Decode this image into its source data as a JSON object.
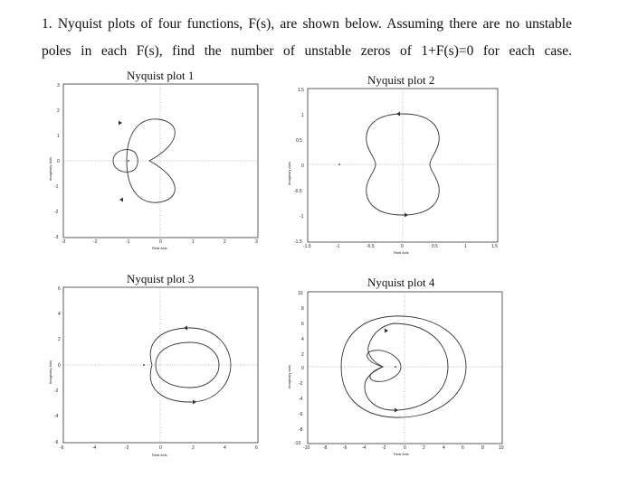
{
  "question": {
    "line1": "1. Nyquist plots of four functions, F(s), are shown below. Assuming there are no unstable",
    "line2": "poles in each F(s), find the number of unstable zeros of 1+F(s)=0 for each case."
  },
  "plots": [
    {
      "title": "Nyquist plot 1",
      "ylabel": "Imaginary Axis",
      "xlabel": "Real Axis",
      "xticks": [
        "-3",
        "-2",
        "-1",
        "0",
        "1",
        "2",
        "3"
      ],
      "yticks": [
        "3",
        "2",
        "1",
        "0",
        "-1",
        "-2",
        "-3"
      ]
    },
    {
      "title": "Nyquist plot 2",
      "ylabel": "Imaginary Axis",
      "xlabel": "Real Axis",
      "xticks": [
        "-1.5",
        "-1",
        "-0.5",
        "0",
        "0.5",
        "1",
        "1.5"
      ],
      "yticks": [
        "1.5",
        "1",
        "0.5",
        "0",
        "-0.5",
        "-1",
        "-1.5"
      ]
    },
    {
      "title": "Nyquist plot 3",
      "ylabel": "Imaginary Axis",
      "xlabel": "Real Axis",
      "xticks": [
        "-6",
        "-4",
        "-2",
        "0",
        "2",
        "4",
        "6"
      ],
      "yticks": [
        "6",
        "4",
        "2",
        "0",
        "-2",
        "-4",
        "-6"
      ]
    },
    {
      "title": "Nyquist plot 4",
      "ylabel": "Imaginary Axis",
      "xlabel": "Real Axis",
      "xticks": [
        "-10",
        "-8",
        "-6",
        "-4",
        "-2",
        "0",
        "2",
        "4",
        "6",
        "8",
        "10"
      ],
      "yticks": [
        "10",
        "8",
        "6",
        "4",
        "2",
        "0",
        "-2",
        "-4",
        "-6",
        "-8",
        "-10"
      ]
    }
  ]
}
